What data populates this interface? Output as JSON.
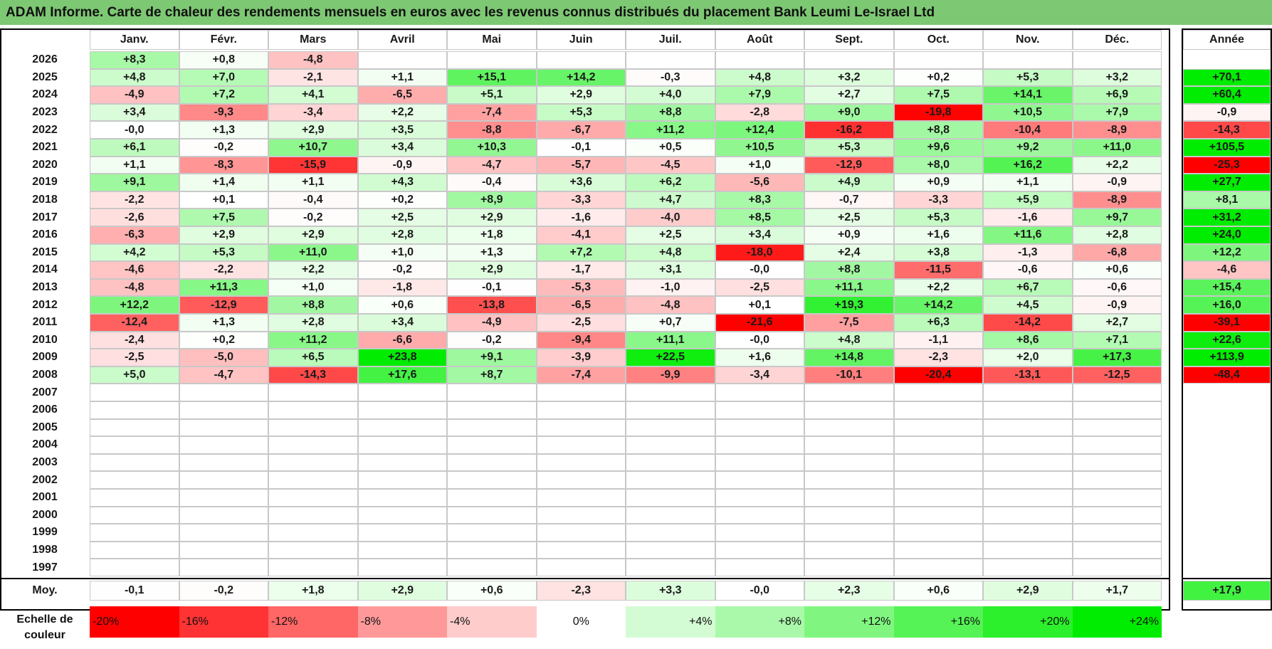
{
  "title": "ADAM Informe. Carte de chaleur des rendements mensuels en euros avec les revenus connus distribués du placement Bank Leumi Le-Israel Ltd",
  "chart_data": {
    "type": "heatmap",
    "months": [
      "Janv.",
      "Févr.",
      "Mars",
      "Avril",
      "Mai",
      "Juin",
      "Juil.",
      "Août",
      "Sept.",
      "Oct.",
      "Nov.",
      "Déc."
    ],
    "year_header": "Année",
    "avg_label": "Moy.",
    "rows": [
      {
        "year": "2026",
        "values": [
          "+8,3",
          "+0,8",
          "-4,8",
          "",
          "",
          "",
          "",
          "",
          "",
          "",
          "",
          ""
        ],
        "annual": ""
      },
      {
        "year": "2025",
        "values": [
          "+4,8",
          "+7,0",
          "-2,1",
          "+1,1",
          "+15,1",
          "+14,2",
          "-0,3",
          "+4,8",
          "+3,2",
          "+0,2",
          "+5,3",
          "+3,2"
        ],
        "annual": "+70,1"
      },
      {
        "year": "2024",
        "values": [
          "-4,9",
          "+7,2",
          "+4,1",
          "-6,5",
          "+5,1",
          "+2,9",
          "+4,0",
          "+7,9",
          "+2,7",
          "+7,5",
          "+14,1",
          "+6,9"
        ],
        "annual": "+60,4"
      },
      {
        "year": "2023",
        "values": [
          "+3,4",
          "-9,3",
          "-3,4",
          "+2,2",
          "-7,4",
          "+5,3",
          "+8,8",
          "-2,8",
          "+9,0",
          "-19,8",
          "+10,5",
          "+7,9"
        ],
        "annual": "-0,9"
      },
      {
        "year": "2022",
        "values": [
          "-0,0",
          "+1,3",
          "+2,9",
          "+3,5",
          "-8,8",
          "-6,7",
          "+11,2",
          "+12,4",
          "-16,2",
          "+8,8",
          "-10,4",
          "-8,9"
        ],
        "annual": "-14,3"
      },
      {
        "year": "2021",
        "values": [
          "+6,1",
          "-0,2",
          "+10,7",
          "+3,4",
          "+10,3",
          "-0,1",
          "+0,5",
          "+10,5",
          "+5,3",
          "+9,6",
          "+9,2",
          "+11,0"
        ],
        "annual": "+105,5"
      },
      {
        "year": "2020",
        "values": [
          "+1,1",
          "-8,3",
          "-15,9",
          "-0,9",
          "-4,7",
          "-5,7",
          "-4,5",
          "+1,0",
          "-12,9",
          "+8,0",
          "+16,2",
          "+2,2"
        ],
        "annual": "-25,3"
      },
      {
        "year": "2019",
        "values": [
          "+9,1",
          "+1,4",
          "+1,1",
          "+4,3",
          "-0,4",
          "+3,6",
          "+6,2",
          "-5,6",
          "+4,9",
          "+0,9",
          "+1,1",
          "-0,9"
        ],
        "annual": "+27,7"
      },
      {
        "year": "2018",
        "values": [
          "-2,2",
          "+0,1",
          "-0,4",
          "+0,2",
          "+8,9",
          "-3,3",
          "+4,7",
          "+8,3",
          "-0,7",
          "-3,3",
          "+5,9",
          "-8,9"
        ],
        "annual": "+8,1"
      },
      {
        "year": "2017",
        "values": [
          "-2,6",
          "+7,5",
          "-0,2",
          "+2,5",
          "+2,9",
          "-1,6",
          "-4,0",
          "+8,5",
          "+2,5",
          "+5,3",
          "-1,6",
          "+9,7"
        ],
        "annual": "+31,2"
      },
      {
        "year": "2016",
        "values": [
          "-6,3",
          "+2,9",
          "+2,9",
          "+2,8",
          "+1,8",
          "-4,1",
          "+2,5",
          "+3,4",
          "+0,9",
          "+1,6",
          "+11,6",
          "+2,8"
        ],
        "annual": "+24,0"
      },
      {
        "year": "2015",
        "values": [
          "+4,2",
          "+5,3",
          "+11,0",
          "+1,0",
          "+1,3",
          "+7,2",
          "+4,8",
          "-18,0",
          "+2,4",
          "+3,8",
          "-1,3",
          "-6,8"
        ],
        "annual": "+12,2"
      },
      {
        "year": "2014",
        "values": [
          "-4,6",
          "-2,2",
          "+2,2",
          "-0,2",
          "+2,9",
          "-1,7",
          "+3,1",
          "-0,0",
          "+8,8",
          "-11,5",
          "-0,6",
          "+0,6"
        ],
        "annual": "-4,6"
      },
      {
        "year": "2013",
        "values": [
          "-4,8",
          "+11,3",
          "+1,0",
          "-1,8",
          "-0,1",
          "-5,3",
          "-1,0",
          "-2,5",
          "+11,1",
          "+2,2",
          "+6,7",
          "-0,6"
        ],
        "annual": "+15,4"
      },
      {
        "year": "2012",
        "values": [
          "+12,2",
          "-12,9",
          "+8,8",
          "+0,6",
          "-13,8",
          "-6,5",
          "-4,8",
          "+0,1",
          "+19,3",
          "+14,2",
          "+4,5",
          "-0,9"
        ],
        "annual": "+16,0"
      },
      {
        "year": "2011",
        "values": [
          "-12,4",
          "+1,3",
          "+2,8",
          "+3,4",
          "-4,9",
          "-2,5",
          "+0,7",
          "-21,6",
          "-7,5",
          "+6,3",
          "-14,2",
          "+2,7"
        ],
        "annual": "-39,1"
      },
      {
        "year": "2010",
        "values": [
          "-2,4",
          "+0,2",
          "+11,2",
          "-6,6",
          "-0,2",
          "-9,4",
          "+11,1",
          "-0,0",
          "+4,8",
          "-1,1",
          "+8,6",
          "+7,1"
        ],
        "annual": "+22,6"
      },
      {
        "year": "2009",
        "values": [
          "-2,5",
          "-5,0",
          "+6,5",
          "+23,8",
          "+9,1",
          "-3,9",
          "+22,5",
          "+1,6",
          "+14,8",
          "-2,3",
          "+2,0",
          "+17,3"
        ],
        "annual": "+113,9"
      },
      {
        "year": "2008",
        "values": [
          "+5,0",
          "-4,7",
          "-14,3",
          "+17,6",
          "+8,7",
          "-7,4",
          "-9,9",
          "-3,4",
          "-10,1",
          "-20,4",
          "-13,1",
          "-12,5"
        ],
        "annual": "-48,4"
      },
      {
        "year": "2007",
        "values": [
          "",
          "",
          "",
          "",
          "",
          "",
          "",
          "",
          "",
          "",
          "",
          ""
        ],
        "annual": ""
      },
      {
        "year": "2006",
        "values": [
          "",
          "",
          "",
          "",
          "",
          "",
          "",
          "",
          "",
          "",
          "",
          ""
        ],
        "annual": ""
      },
      {
        "year": "2005",
        "values": [
          "",
          "",
          "",
          "",
          "",
          "",
          "",
          "",
          "",
          "",
          "",
          ""
        ],
        "annual": ""
      },
      {
        "year": "2004",
        "values": [
          "",
          "",
          "",
          "",
          "",
          "",
          "",
          "",
          "",
          "",
          "",
          ""
        ],
        "annual": ""
      },
      {
        "year": "2003",
        "values": [
          "",
          "",
          "",
          "",
          "",
          "",
          "",
          "",
          "",
          "",
          "",
          ""
        ],
        "annual": ""
      },
      {
        "year": "2002",
        "values": [
          "",
          "",
          "",
          "",
          "",
          "",
          "",
          "",
          "",
          "",
          "",
          ""
        ],
        "annual": ""
      },
      {
        "year": "2001",
        "values": [
          "",
          "",
          "",
          "",
          "",
          "",
          "",
          "",
          "",
          "",
          "",
          ""
        ],
        "annual": ""
      },
      {
        "year": "2000",
        "values": [
          "",
          "",
          "",
          "",
          "",
          "",
          "",
          "",
          "",
          "",
          "",
          ""
        ],
        "annual": ""
      },
      {
        "year": "1999",
        "values": [
          "",
          "",
          "",
          "",
          "",
          "",
          "",
          "",
          "",
          "",
          "",
          ""
        ],
        "annual": ""
      },
      {
        "year": "1998",
        "values": [
          "",
          "",
          "",
          "",
          "",
          "",
          "",
          "",
          "",
          "",
          "",
          ""
        ],
        "annual": ""
      },
      {
        "year": "1997",
        "values": [
          "",
          "",
          "",
          "",
          "",
          "",
          "",
          "",
          "",
          "",
          "",
          ""
        ],
        "annual": ""
      }
    ],
    "averages": {
      "values": [
        "-0,1",
        "-0,2",
        "+1,8",
        "+2,9",
        "+0,6",
        "-2,3",
        "+3,3",
        "-0,0",
        "+2,3",
        "+0,6",
        "+2,9",
        "+1,7"
      ],
      "annual": "+17,9"
    },
    "scale": {
      "label": "Echelle de couleur",
      "stops": [
        {
          "text": "-20%",
          "value": -20,
          "color": "#ff0000"
        },
        {
          "text": "-16%",
          "value": -16,
          "color": "#ff3333"
        },
        {
          "text": "-12%",
          "value": -12,
          "color": "#ff6666"
        },
        {
          "text": "-8%",
          "value": -8,
          "color": "#ff9999"
        },
        {
          "text": "-4%",
          "value": -4,
          "color": "#ffcccc"
        },
        {
          "text": "0%",
          "value": 0,
          "color": "#ffffff"
        },
        {
          "text": "+4%",
          "value": 4,
          "color": "#d4fcd4"
        },
        {
          "text": "+8%",
          "value": 8,
          "color": "#aaf9aa"
        },
        {
          "text": "+12%",
          "value": 12,
          "color": "#80f680"
        },
        {
          "text": "+16%",
          "value": 16,
          "color": "#55f355"
        },
        {
          "text": "+20%",
          "value": 20,
          "color": "#2bf02b"
        },
        {
          "text": "+24%",
          "value": 24,
          "color": "#00ec00"
        }
      ]
    }
  }
}
